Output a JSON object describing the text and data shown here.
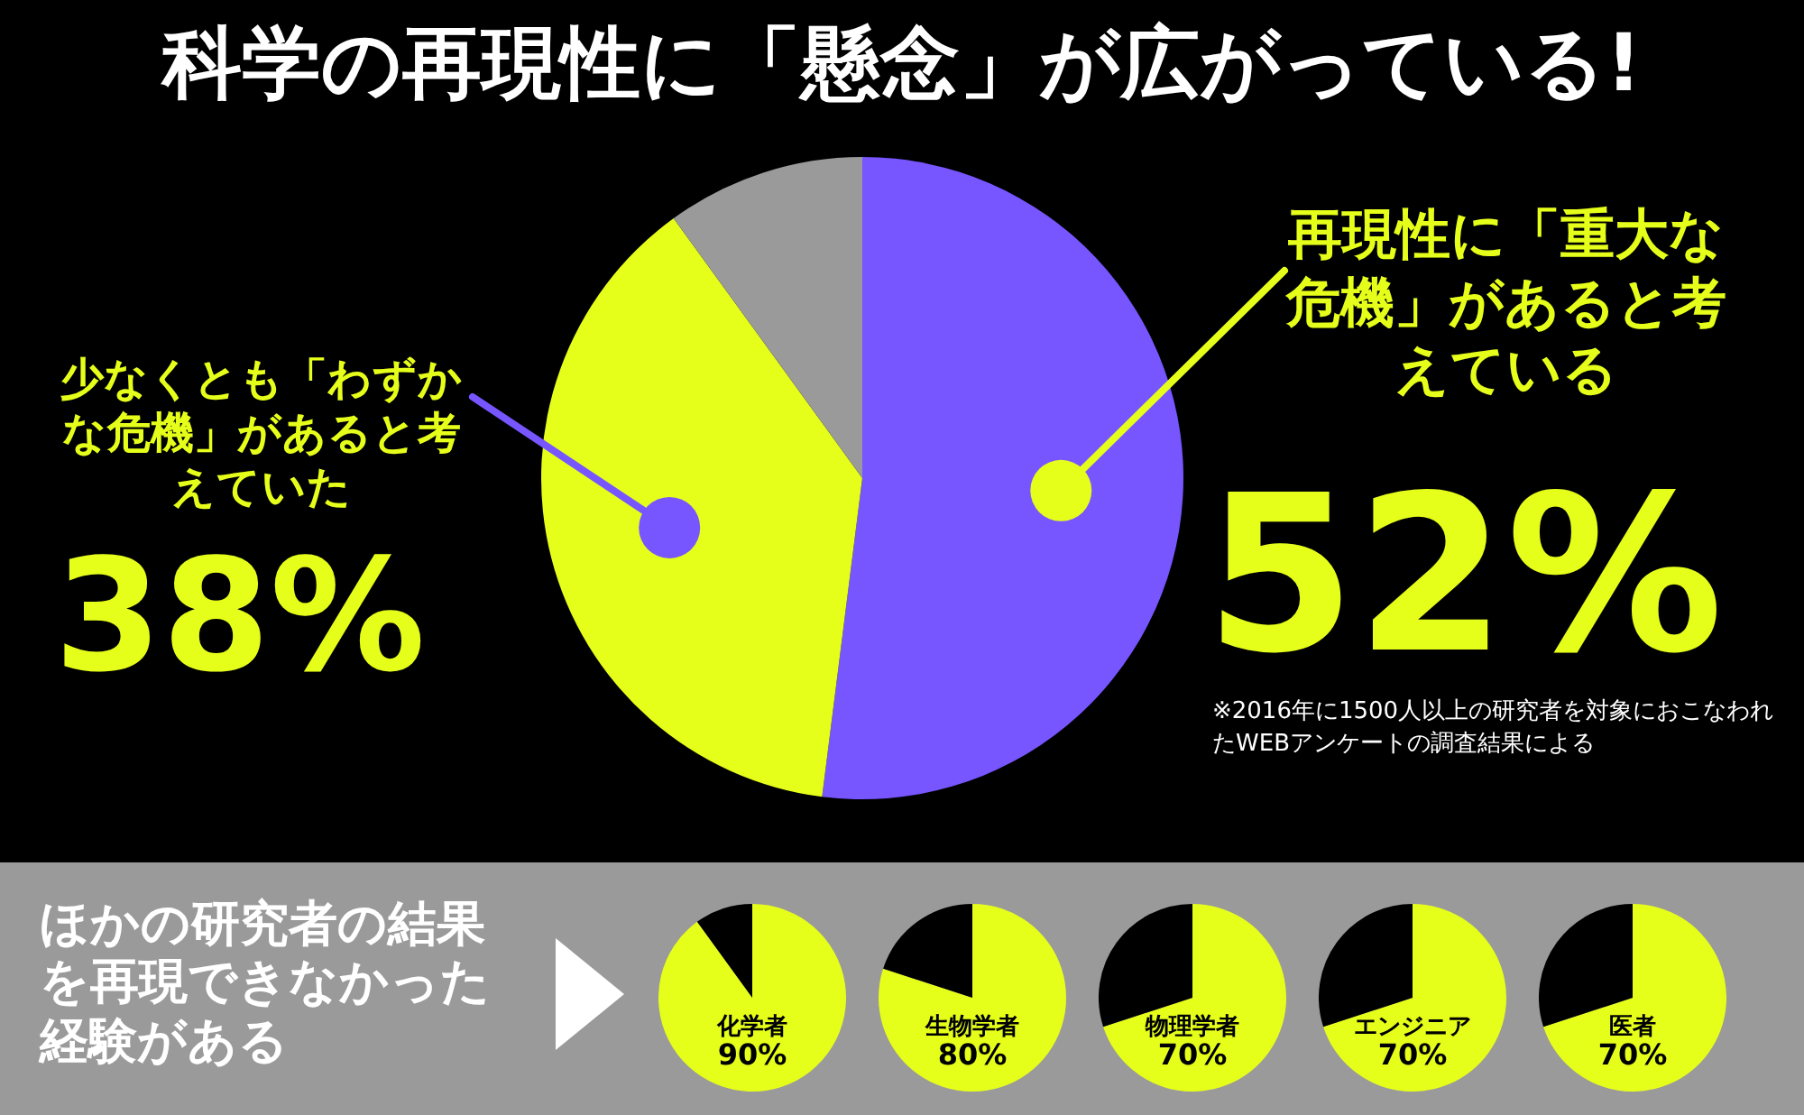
{
  "chart_data": [
    {
      "type": "pie",
      "title": "科学の再現性に「懸念」が広がっている!",
      "categories": [
        "再現性に「重大な危機」があると考えている",
        "少なくとも「わずかな危機」があると考えていた",
        null
      ],
      "values": [
        52,
        38,
        10
      ],
      "colors": [
        "#7755ff",
        "#e6ff1a",
        "#9a9a9a"
      ],
      "value_labels": [
        "52%",
        "38%",
        null
      ],
      "annotations": [
        "※2016年に1500人以上の研究者を対象におこなわれたWEBアンケートの調査結果による"
      ]
    },
    {
      "type": "other",
      "title": "ほかの研究者の結果を再現できなかった経験がある"
    },
    {
      "type": "pie",
      "categories": [
        "化学者",
        null
      ],
      "values": [
        90,
        10
      ],
      "colors": [
        "#e6ff1a",
        "#000000"
      ],
      "value_labels": [
        "90%",
        null
      ]
    },
    {
      "type": "pie",
      "categories": [
        "生物学者",
        null
      ],
      "values": [
        80,
        20
      ],
      "colors": [
        "#e6ff1a",
        "#000000"
      ],
      "value_labels": [
        "80%",
        null
      ]
    },
    {
      "type": "pie",
      "categories": [
        "物理学者",
        null
      ],
      "values": [
        70,
        30
      ],
      "colors": [
        "#e6ff1a",
        "#000000"
      ],
      "value_labels": [
        "70%",
        null
      ]
    },
    {
      "type": "pie",
      "categories": [
        "エンジニア",
        null
      ],
      "values": [
        70,
        30
      ],
      "colors": [
        "#e6ff1a",
        "#000000"
      ],
      "value_labels": [
        "70%",
        null
      ]
    },
    {
      "type": "pie",
      "categories": [
        "医者",
        null
      ],
      "values": [
        70,
        30
      ],
      "colors": [
        "#e6ff1a",
        "#000000"
      ],
      "value_labels": [
        "70%",
        null
      ]
    }
  ]
}
